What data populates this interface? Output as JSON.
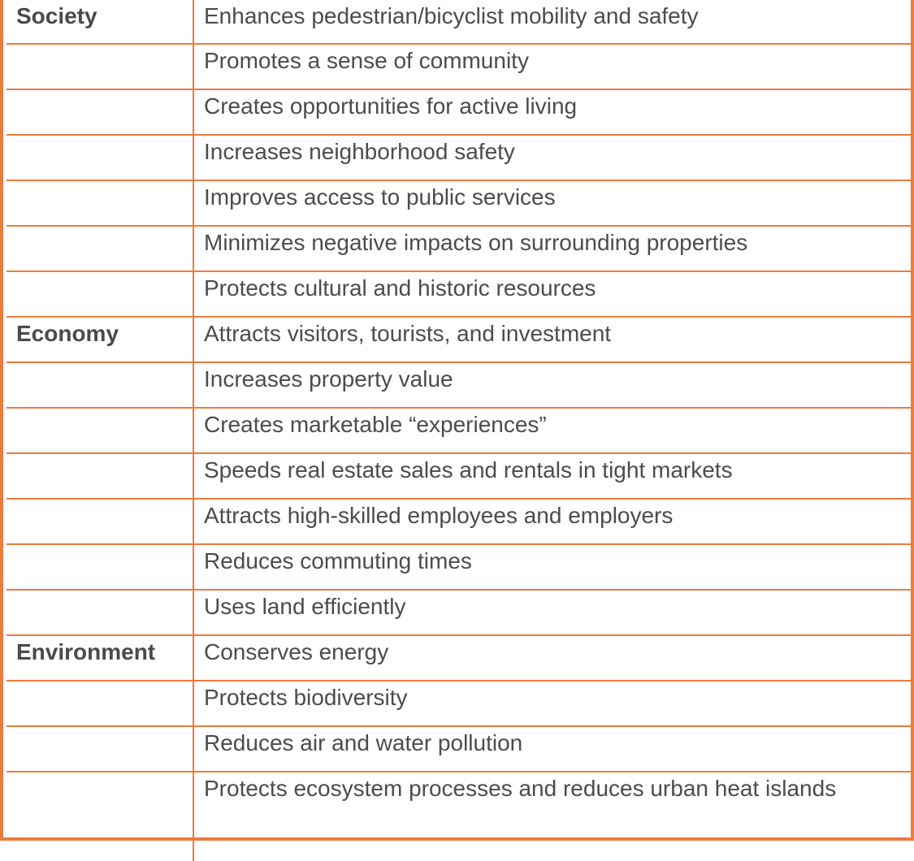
{
  "colors": {
    "border": "#ec7b3e",
    "text": "#4c4c4c"
  },
  "rows": [
    {
      "category": "Society",
      "benefit": "Enhances pedestrian/bicyclist mobility and safety"
    },
    {
      "category": "",
      "benefit": "Promotes a sense of community"
    },
    {
      "category": "",
      "benefit": "Creates opportunities for active living"
    },
    {
      "category": "",
      "benefit": "Increases neighborhood safety"
    },
    {
      "category": "",
      "benefit": "Improves access to public services"
    },
    {
      "category": "",
      "benefit": "Minimizes negative impacts on surrounding properties"
    },
    {
      "category": "",
      "benefit": "Protects cultural and historic resources"
    },
    {
      "category": "Economy",
      "benefit": "Attracts visitors, tourists, and investment"
    },
    {
      "category": "",
      "benefit": "Increases property value"
    },
    {
      "category": "",
      "benefit": "Creates marketable “experiences”"
    },
    {
      "category": "",
      "benefit": "Speeds real estate sales and rentals in tight markets"
    },
    {
      "category": "",
      "benefit": "Attracts high-skilled employees and employers"
    },
    {
      "category": "",
      "benefit": "Reduces commuting times"
    },
    {
      "category": "",
      "benefit": "Uses land efficiently"
    },
    {
      "category": "Environment",
      "benefit": "Conserves energy"
    },
    {
      "category": "",
      "benefit": "Protects biodiversity"
    },
    {
      "category": "",
      "benefit": "Reduces air and water pollution"
    },
    {
      "category": "",
      "benefit": "Protects ecosystem processes and reduces urban heat islands"
    }
  ]
}
